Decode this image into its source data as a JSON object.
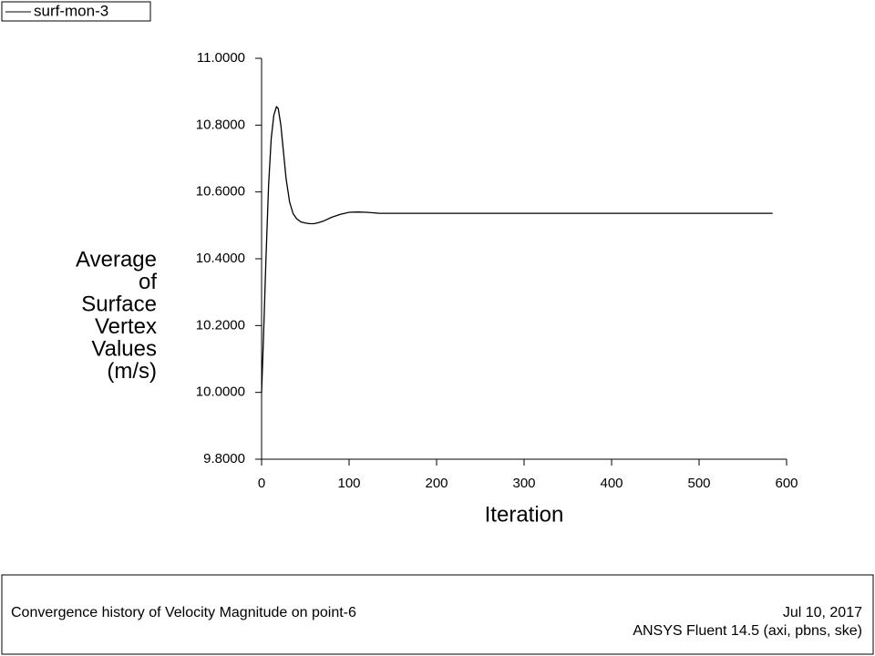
{
  "chart_data": {
    "type": "line",
    "legend": "surf-mon-3",
    "y_label_lines": [
      "Average",
      "of",
      "Surface",
      "Vertex",
      "Values",
      "(m/s)"
    ],
    "x_label": "Iteration",
    "x": [
      0,
      2,
      5,
      8,
      11,
      14,
      17,
      19,
      22,
      25,
      28,
      32,
      36,
      40,
      45,
      50,
      55,
      60,
      65,
      70,
      80,
      90,
      100,
      110,
      120,
      135,
      200,
      300,
      400,
      500,
      584
    ],
    "series": [
      {
        "name": "surf-mon-3",
        "color": "#000000",
        "values": [
          10.0,
          10.15,
          10.4,
          10.62,
          10.76,
          10.83,
          10.855,
          10.85,
          10.8,
          10.72,
          10.64,
          10.57,
          10.535,
          10.52,
          10.51,
          10.507,
          10.505,
          10.505,
          10.508,
          10.512,
          10.524,
          10.533,
          10.539,
          10.54,
          10.539,
          10.536,
          10.536,
          10.536,
          10.536,
          10.536,
          10.536
        ]
      }
    ],
    "xlim": [
      0,
      600
    ],
    "xticks": [
      0,
      100,
      200,
      300,
      400,
      500,
      600
    ],
    "ylim": [
      9.8,
      11.0
    ],
    "yticks": [
      {
        "value": 9.8,
        "label": "9.8000"
      },
      {
        "value": 10.0,
        "label": "10.0000"
      },
      {
        "value": 10.2,
        "label": "10.2000"
      },
      {
        "value": 10.4,
        "label": "10.4000"
      },
      {
        "value": 10.6,
        "label": "10.6000"
      },
      {
        "value": 10.8,
        "label": "10.8000"
      },
      {
        "value": 11.0,
        "label": "11.0000"
      }
    ],
    "footer_title": "Convergence history of Velocity Magnitude on point-6",
    "footer_date": "Jul 10, 2017",
    "footer_solver": "ANSYS Fluent 14.5 (axi, pbns, ske)"
  }
}
